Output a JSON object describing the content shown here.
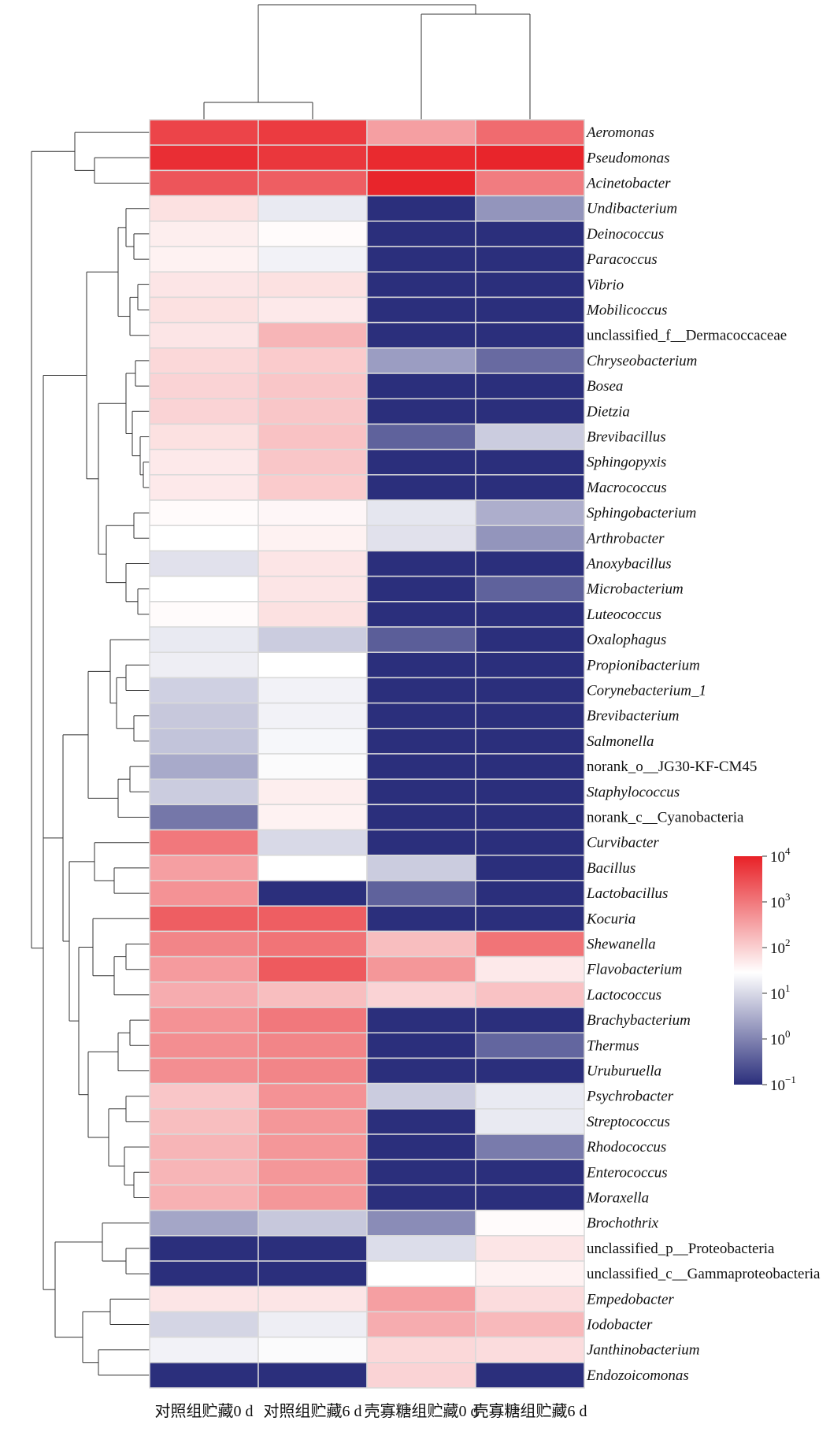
{
  "chart_data": {
    "type": "heatmap",
    "columns": [
      "对照组贮藏0 d",
      "对照组贮藏6 d",
      "壳寡糖组贮藏0 d",
      "壳寡糖组贮藏6 d"
    ],
    "rows": [
      {
        "label": "Aeromonas",
        "italic": true
      },
      {
        "label": "Pseudomonas",
        "italic": true
      },
      {
        "label": "Acinetobacter",
        "italic": true
      },
      {
        "label": "Undibacterium",
        "italic": true
      },
      {
        "label": "Deinococcus",
        "italic": true
      },
      {
        "label": "Paracoccus",
        "italic": true
      },
      {
        "label": "Vibrio",
        "italic": true
      },
      {
        "label": "Mobilicoccus",
        "italic": true
      },
      {
        "label": "unclassified_f__Dermacoccaceae",
        "italic": false
      },
      {
        "label": "Chryseobacterium",
        "italic": true
      },
      {
        "label": "Bosea",
        "italic": true
      },
      {
        "label": "Dietzia",
        "italic": true
      },
      {
        "label": "Brevibacillus",
        "italic": true
      },
      {
        "label": "Sphingopyxis",
        "italic": true
      },
      {
        "label": "Macrococcus",
        "italic": true
      },
      {
        "label": "Sphingobacterium",
        "italic": true
      },
      {
        "label": "Arthrobacter",
        "italic": true
      },
      {
        "label": "Anoxybacillus",
        "italic": true
      },
      {
        "label": "Microbacterium",
        "italic": true
      },
      {
        "label": "Luteococcus",
        "italic": true
      },
      {
        "label": "Oxalophagus",
        "italic": true
      },
      {
        "label": "Propionibacterium",
        "italic": true
      },
      {
        "label": "Corynebacterium_1",
        "italic": true
      },
      {
        "label": "Brevibacterium",
        "italic": true
      },
      {
        "label": "Salmonella",
        "italic": true
      },
      {
        "label": "norank_o__JG30-KF-CM45",
        "italic": false
      },
      {
        "label": "Staphylococcus",
        "italic": true
      },
      {
        "label": "norank_c__Cyanobacteria",
        "italic": false
      },
      {
        "label": "Curvibacter",
        "italic": true
      },
      {
        "label": "Bacillus",
        "italic": true
      },
      {
        "label": "Lactobacillus",
        "italic": true
      },
      {
        "label": "Kocuria",
        "italic": true
      },
      {
        "label": "Shewanella",
        "italic": true
      },
      {
        "label": "Flavobacterium",
        "italic": true
      },
      {
        "label": "Lactococcus",
        "italic": true
      },
      {
        "label": "Brachybacterium",
        "italic": true
      },
      {
        "label": "Thermus",
        "italic": true
      },
      {
        "label": "Uruburuella",
        "italic": true
      },
      {
        "label": "Psychrobacter",
        "italic": true
      },
      {
        "label": "Streptococcus",
        "italic": true
      },
      {
        "label": "Rhodococcus",
        "italic": true
      },
      {
        "label": "Enterococcus",
        "italic": true
      },
      {
        "label": "Moraxella",
        "italic": true
      },
      {
        "label": "Brochothrix",
        "italic": true
      },
      {
        "label": "unclassified_p__Proteobacteria",
        "italic": false
      },
      {
        "label": "unclassified_c__Gammaproteobacteria",
        "italic": false
      },
      {
        "label": "Empedobacter",
        "italic": true
      },
      {
        "label": "Iodobacter",
        "italic": true
      },
      {
        "label": "Janthinobacterium",
        "italic": true
      },
      {
        "label": "Endozoicomonas",
        "italic": true
      }
    ],
    "log10_values": [
      [
        3.6,
        3.7,
        2.55,
        3.15
      ],
      [
        3.85,
        3.75,
        3.9,
        3.95
      ],
      [
        3.4,
        3.3,
        3.95,
        2.95
      ],
      [
        1.8,
        1.2,
        -1.0,
        0.2
      ],
      [
        1.65,
        1.5,
        -1.0,
        -1.0
      ],
      [
        1.6,
        1.3,
        -1.0,
        -1.0
      ],
      [
        1.75,
        1.8,
        -1.0,
        -1.0
      ],
      [
        1.8,
        1.7,
        -1.0,
        -1.0
      ],
      [
        1.75,
        2.3,
        -1.0,
        -1.0
      ],
      [
        1.9,
        2.05,
        0.3,
        -0.3
      ],
      [
        1.95,
        2.1,
        -1.0,
        -1.0
      ],
      [
        1.95,
        2.1,
        -1.0,
        -1.0
      ],
      [
        1.8,
        2.15,
        -0.4,
        0.85
      ],
      [
        1.7,
        2.1,
        -1.0,
        -1.0
      ],
      [
        1.7,
        2.05,
        -1.0,
        -1.0
      ],
      [
        1.5,
        1.55,
        1.15,
        0.5
      ],
      [
        1.45,
        1.6,
        1.1,
        0.2
      ],
      [
        1.1,
        1.75,
        -1.0,
        -1.0
      ],
      [
        1.45,
        1.75,
        -1.0,
        -0.4
      ],
      [
        1.5,
        1.8,
        -1.0,
        -1.0
      ],
      [
        1.2,
        0.85,
        -0.45,
        -1.0
      ],
      [
        1.25,
        1.45,
        -1.0,
        -1.0
      ],
      [
        0.9,
        1.3,
        -1.0,
        -1.0
      ],
      [
        0.8,
        1.3,
        -1.0,
        -1.0
      ],
      [
        0.75,
        1.35,
        -1.0,
        -1.0
      ],
      [
        0.45,
        1.4,
        -1.0,
        -1.0
      ],
      [
        0.85,
        1.65,
        -1.0,
        -1.0
      ],
      [
        -0.15,
        1.6,
        -1.0,
        -1.0
      ],
      [
        3.0,
        1.0,
        -1.0,
        -1.0
      ],
      [
        2.55,
        1.45,
        0.85,
        -1.0
      ],
      [
        2.7,
        -1.0,
        -0.4,
        -1.0
      ],
      [
        3.3,
        3.3,
        -1.0,
        -1.0
      ],
      [
        2.85,
        3.05,
        2.2,
        3.05
      ],
      [
        2.6,
        3.35,
        2.65,
        1.7
      ],
      [
        2.4,
        2.2,
        1.95,
        2.15
      ],
      [
        2.7,
        3.0,
        -1.0,
        -1.0
      ],
      [
        2.75,
        2.85,
        -1.0,
        -0.35
      ],
      [
        2.75,
        2.85,
        -1.0,
        -1.0
      ],
      [
        2.1,
        2.7,
        0.85,
        1.2
      ],
      [
        2.2,
        2.65,
        -1.0,
        1.2
      ],
      [
        2.3,
        2.65,
        -1.0,
        -0.1
      ],
      [
        2.3,
        2.65,
        -1.0,
        -1.0
      ],
      [
        2.35,
        2.65,
        -1.0,
        -1.0
      ],
      [
        0.4,
        0.8,
        0.1,
        1.5
      ],
      [
        -1.0,
        -1.0,
        1.05,
        1.75
      ],
      [
        -1.0,
        -1.0,
        1.45,
        1.6
      ],
      [
        1.75,
        1.75,
        2.55,
        1.85
      ],
      [
        0.95,
        1.25,
        2.4,
        2.25
      ],
      [
        1.3,
        1.4,
        1.9,
        1.85
      ],
      [
        -1.0,
        -1.0,
        1.95,
        -1.0
      ]
    ],
    "color_scale": {
      "scale": "log10",
      "range": [
        -1,
        4
      ],
      "stops": [
        "#2b2f7c",
        "#ffffff",
        "#e82127"
      ],
      "midpoint": 1.45,
      "tick_labels": [
        {
          "base": "10",
          "exp": "4"
        },
        {
          "base": "10",
          "exp": "3"
        },
        {
          "base": "10",
          "exp": "2"
        },
        {
          "base": "10",
          "exp": "1"
        },
        {
          "base": "10",
          "exp": "0"
        },
        {
          "base": "10",
          "exp": "−1"
        }
      ]
    },
    "dendrograms": {
      "rows": "left",
      "columns": "top"
    },
    "legend_position": "right"
  }
}
